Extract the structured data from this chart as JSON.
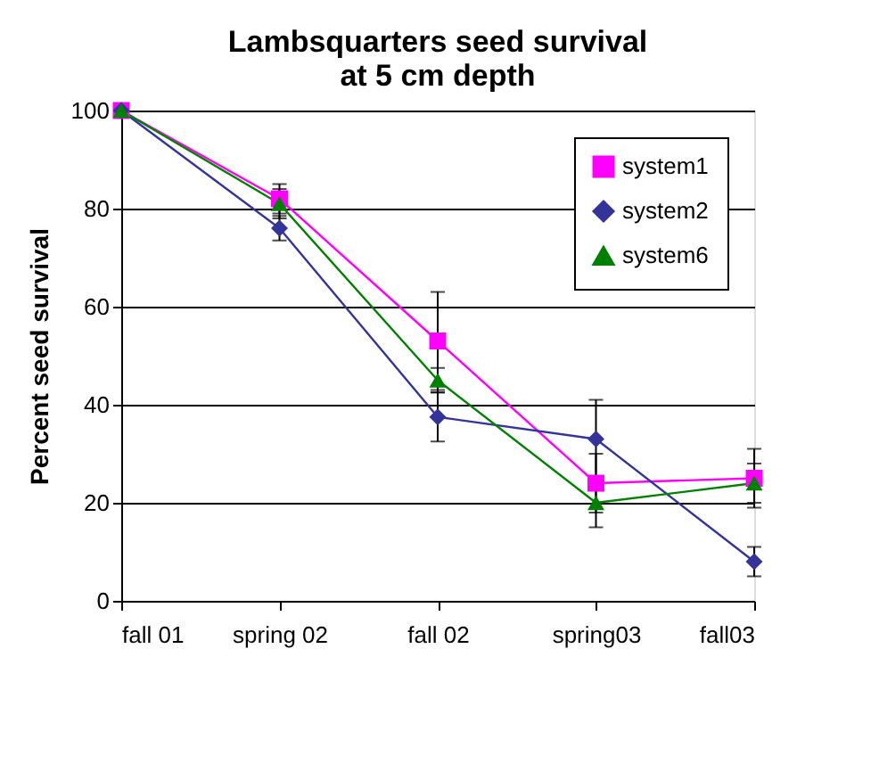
{
  "chart_data": {
    "type": "line",
    "title": "Lambsquarters seed survival\nat 5 cm depth",
    "ylabel": "Percent seed survival",
    "categories": [
      "fall 01",
      "spring 02",
      "fall 02",
      "spring03",
      "fall03"
    ],
    "series": [
      {
        "name": "system1",
        "color": "#ff00ff",
        "marker": "square",
        "values": [
          100,
          82,
          53,
          24,
          25
        ],
        "errors": [
          null,
          3,
          10,
          6,
          6
        ]
      },
      {
        "name": "system2",
        "color": "#333399",
        "marker": "diamond",
        "values": [
          100,
          76,
          37.5,
          33,
          8
        ],
        "errors": [
          null,
          2.5,
          5,
          8,
          3
        ]
      },
      {
        "name": "system6",
        "color": "#008000",
        "marker": "triangle",
        "values": [
          100,
          81,
          45,
          20,
          24
        ],
        "errors": [
          null,
          3,
          2.5,
          5,
          4
        ]
      }
    ],
    "ylim": [
      0,
      100
    ],
    "yticks": [
      0,
      20,
      40,
      60,
      80,
      100
    ],
    "grid": "y",
    "legend": "top right",
    "line_style": "solid"
  }
}
